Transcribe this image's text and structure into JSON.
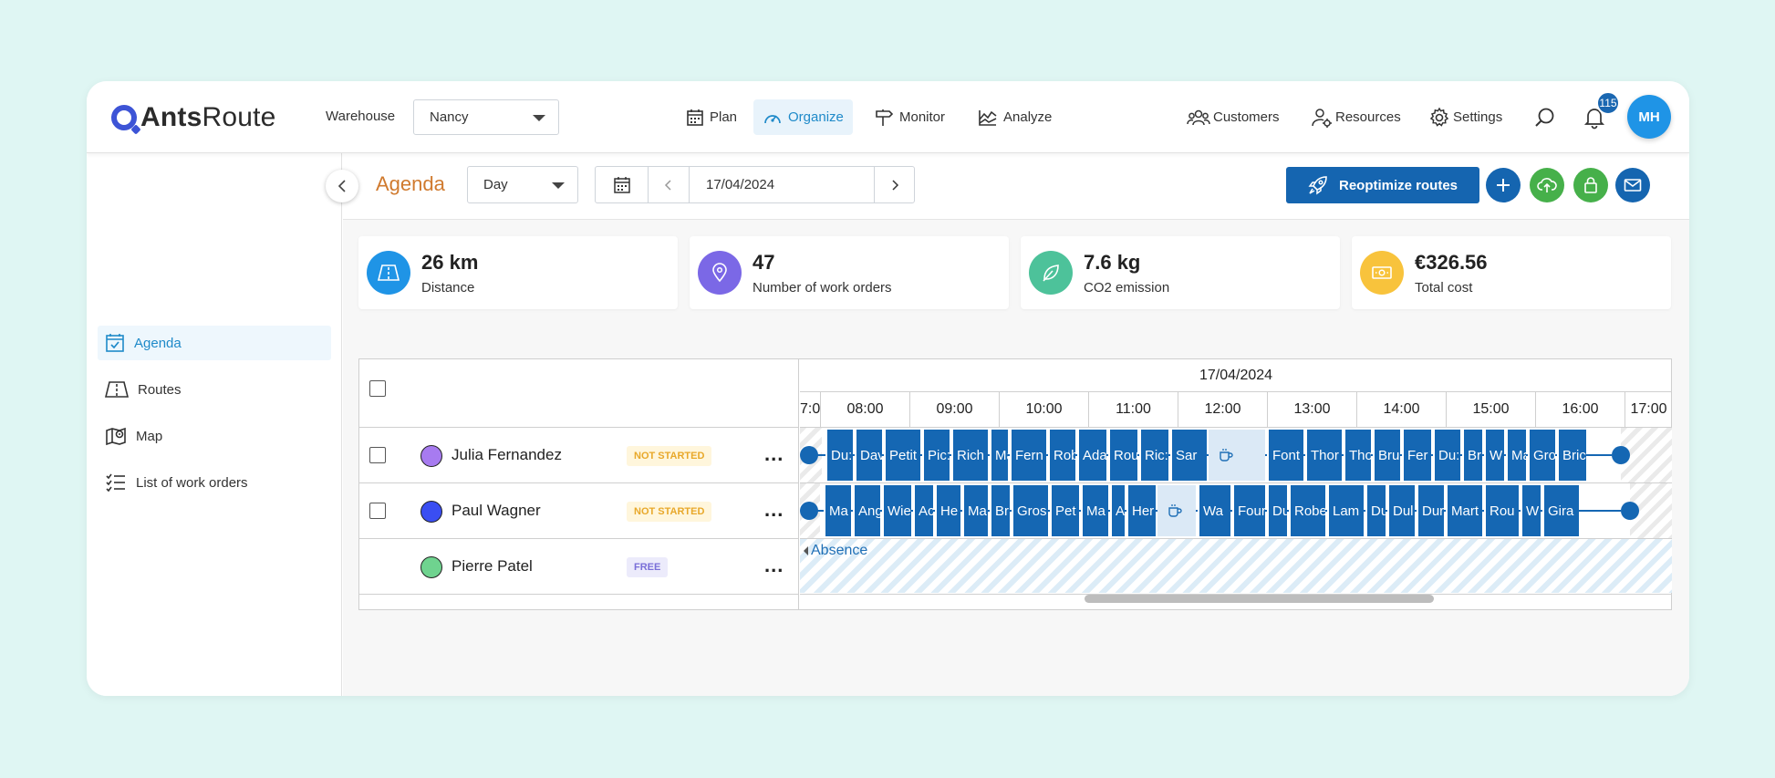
{
  "brand": {
    "name_bold": "Ants",
    "name_rest": "Route"
  },
  "header": {
    "warehouse_label": "Warehouse",
    "warehouse_value": "Nancy",
    "nav": [
      {
        "id": "plan",
        "label": "Plan",
        "icon": "calendar-icon"
      },
      {
        "id": "organize",
        "label": "Organize",
        "icon": "gauge-icon",
        "active": true
      },
      {
        "id": "monitor",
        "label": "Monitor",
        "icon": "signpost-icon"
      },
      {
        "id": "analyze",
        "label": "Analyze",
        "icon": "chart-icon"
      }
    ],
    "right_nav": [
      {
        "id": "customers",
        "label": "Customers",
        "icon": "customers-icon"
      },
      {
        "id": "resources",
        "label": "Resources",
        "icon": "resources-icon"
      },
      {
        "id": "settings",
        "label": "Settings",
        "icon": "gear-icon"
      }
    ],
    "notifications_count": "115",
    "user_initials": "MH"
  },
  "sidebar": {
    "items": [
      {
        "label": "Agenda",
        "icon": "calendar-check-icon",
        "active": true
      },
      {
        "label": "Routes",
        "icon": "road-icon"
      },
      {
        "label": "Map",
        "icon": "map-icon"
      },
      {
        "label": "List of work orders",
        "icon": "list-icon"
      }
    ]
  },
  "toolbar": {
    "title": "Agenda",
    "view_value": "Day",
    "date": "17/04/2024",
    "reoptimize_label": "Reoptimize routes"
  },
  "kpis": [
    {
      "value": "26 km",
      "label": "Distance",
      "color": "#1f94e6",
      "icon": "road-icon"
    },
    {
      "value": "47",
      "label": "Number of work orders",
      "color": "#7b68e6",
      "icon": "pin-icon"
    },
    {
      "value": "7.6 kg",
      "label": "CO2 emission",
      "color": "#4dc29a",
      "icon": "leaf-icon"
    },
    {
      "value": "€326.56",
      "label": "Total cost",
      "color": "#f8c33c",
      "icon": "money-icon"
    }
  ],
  "schedule": {
    "date": "17/04/2024",
    "hours": [
      "7:0",
      "08:00",
      "09:00",
      "10:00",
      "11:00",
      "12:00",
      "13:00",
      "14:00",
      "15:00",
      "16:00",
      "17:00"
    ],
    "resources": [
      {
        "name": "Julia Fernandez",
        "status": "NOT STARTED",
        "color": "#a77bf0",
        "blocks": [
          "Du:",
          "Dav",
          "Petit",
          "Pic:",
          "Rich",
          "Ma",
          "Fern",
          "Rob",
          "Ada",
          "Rou",
          "Ric:",
          "Sar",
          "Font",
          "Thor",
          "Tho",
          "Bru",
          "Fer",
          "Du:",
          "Br",
          "W",
          "Ma",
          "Gro",
          "Bric"
        ]
      },
      {
        "name": "Paul Wagner",
        "status": "NOT STARTED",
        "color": "#3a4ef2",
        "blocks": [
          "Ma",
          "Ang",
          "Wie",
          "Ac",
          "He",
          "Ma",
          "Br",
          "Gros",
          "Pet",
          "Ma",
          "Ar",
          "Her",
          "Wa",
          "Four",
          "Du",
          "Robe",
          "Lam",
          "Du",
          "Dul",
          "Dur",
          "Mart",
          "Rou",
          "W",
          "Gira"
        ]
      },
      {
        "name": "Pierre Patel",
        "status": "FREE",
        "color": "#6fd38f",
        "absence_label": "Absence"
      }
    ]
  }
}
